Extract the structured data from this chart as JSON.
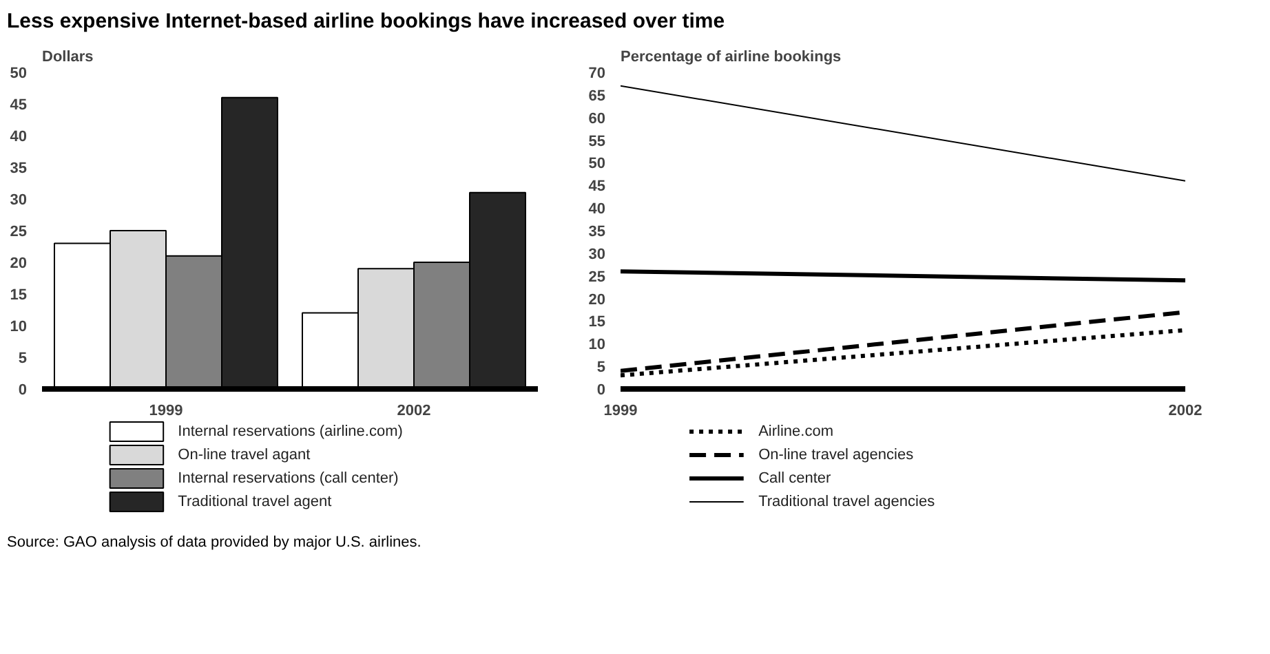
{
  "chart_data": [
    {
      "type": "bar",
      "title": "Less expensive Internet-based airline bookings have increased over time",
      "ylabel": "Dollars",
      "categories": [
        "1999",
        "2002"
      ],
      "series": [
        {
          "name": "Internal reservations (airline.com)",
          "color": "#ffffff",
          "values": [
            23,
            12
          ]
        },
        {
          "name": "On-line travel agant",
          "color": "#d9d9d9",
          "values": [
            25,
            19
          ]
        },
        {
          "name": "Internal reservations (call center)",
          "color": "#808080",
          "values": [
            21,
            20
          ]
        },
        {
          "name": "Traditional travel agent",
          "color": "#262626",
          "values": [
            46,
            31
          ]
        }
      ],
      "ylim": [
        0,
        50
      ],
      "yticks": [
        0,
        5,
        10,
        15,
        20,
        25,
        30,
        35,
        40,
        45,
        50
      ],
      "grid": false,
      "legend": "bottom",
      "annotations": [
        "Source: GAO analysis of data provided by major U.S. airlines."
      ]
    },
    {
      "type": "line",
      "ylabel": "Percentage of airline bookings",
      "x": [
        1999,
        2002
      ],
      "series": [
        {
          "name": "Airline.com",
          "color": "#000000",
          "values": [
            3,
            13
          ],
          "line_style": "dotted"
        },
        {
          "name": "On-line travel agencies",
          "color": "#000000",
          "values": [
            4,
            17
          ],
          "line_style": "dashed"
        },
        {
          "name": "Call center",
          "color": "#000000",
          "values": [
            26,
            24
          ],
          "line_style": "solid"
        },
        {
          "name": "Traditional travel agencies",
          "color": "#000000",
          "values": [
            67,
            46
          ],
          "line_style": "solid"
        }
      ],
      "xlim": [
        1999,
        2002
      ],
      "xticks": [
        1999,
        2002
      ],
      "ylim": [
        0,
        70
      ],
      "yticks": [
        0,
        5,
        10,
        15,
        20,
        25,
        30,
        35,
        40,
        45,
        50,
        55,
        60,
        65,
        70
      ],
      "grid": false,
      "legend": "bottom"
    }
  ]
}
